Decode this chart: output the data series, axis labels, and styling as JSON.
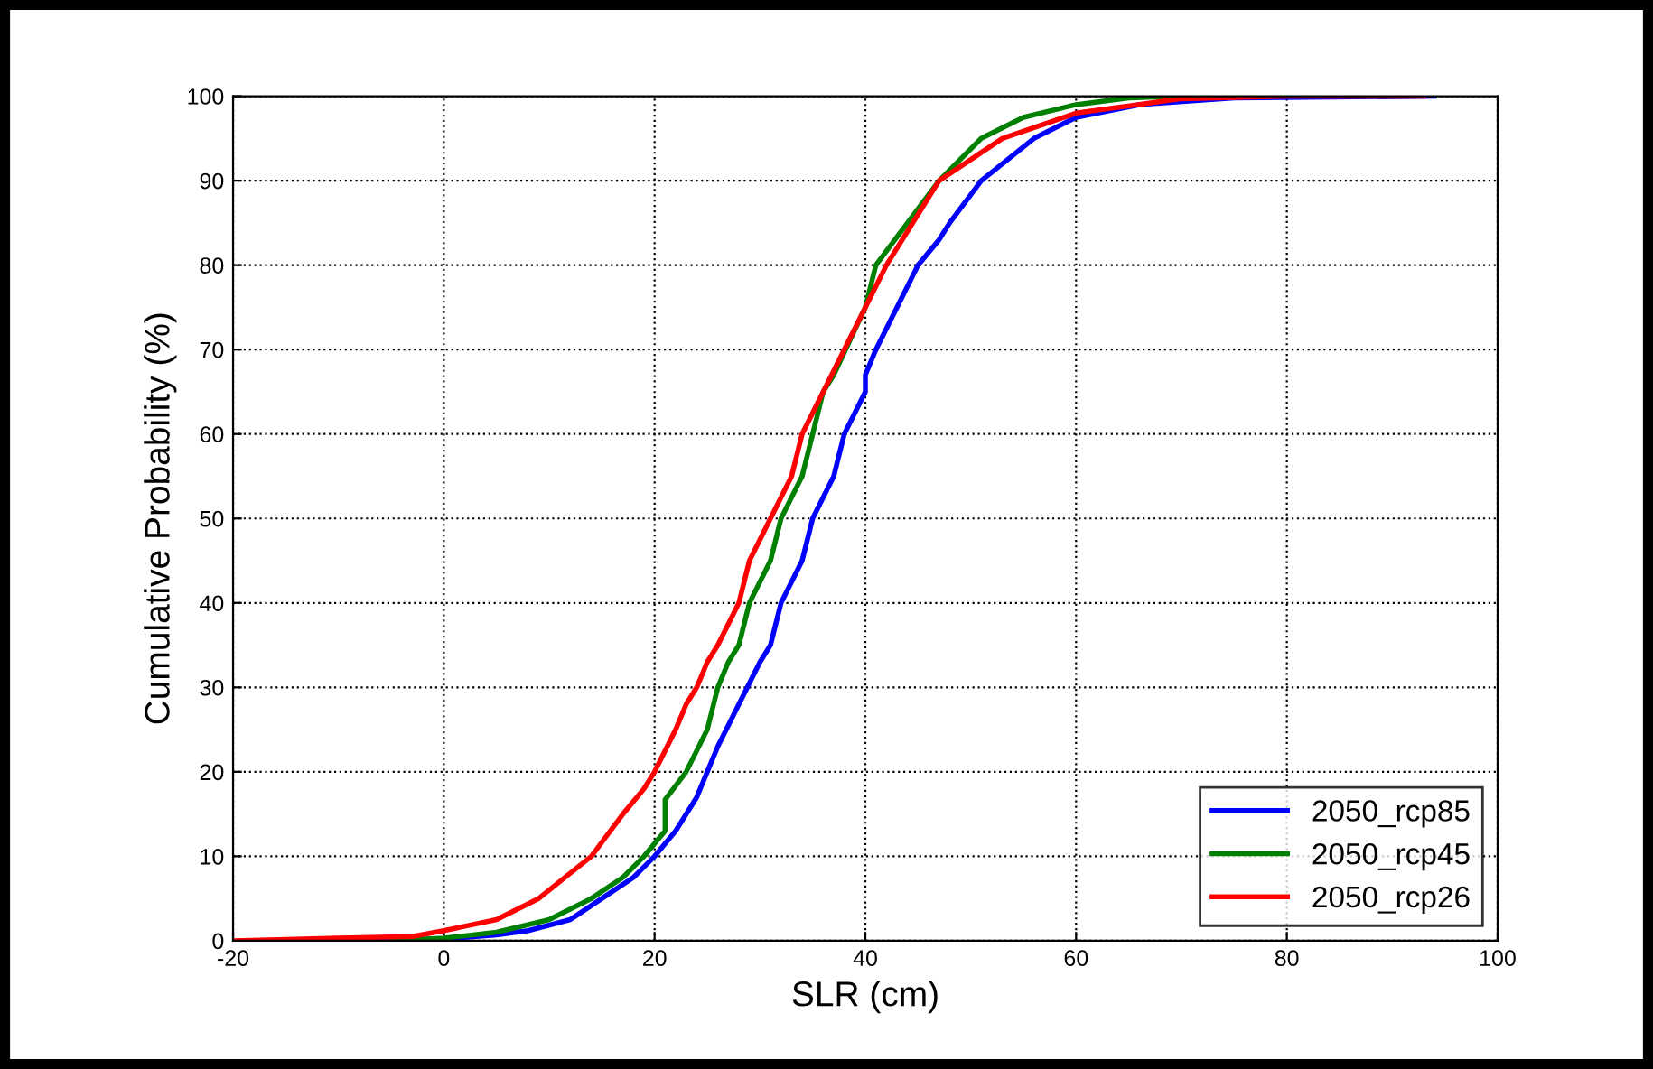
{
  "chart_data": {
    "type": "line",
    "xlabel": "SLR (cm)",
    "ylabel": "Cumulative Probability (%)",
    "xlim": [
      -20,
      100
    ],
    "ylim": [
      0,
      100
    ],
    "xticks": [
      -20,
      0,
      20,
      40,
      60,
      80,
      100
    ],
    "yticks": [
      0,
      10,
      20,
      30,
      40,
      50,
      60,
      70,
      80,
      90,
      100
    ],
    "grid": true,
    "legend": "bottom right",
    "line_style": "solid",
    "marker": "none",
    "series": [
      {
        "name": "2050_rcp85",
        "color": "#0000ff",
        "x": [
          -11,
          0,
          5,
          8,
          12,
          15,
          18,
          20,
          22,
          24,
          25,
          26,
          28,
          30,
          31,
          32,
          34,
          35,
          37,
          38,
          40,
          40,
          41,
          43,
          45,
          47,
          48,
          51,
          56,
          60,
          66,
          75,
          94
        ],
        "values": [
          0,
          0.2,
          0.7,
          1.2,
          2.5,
          5,
          7.5,
          10,
          13,
          17,
          20,
          23,
          28,
          33,
          35,
          40,
          45,
          50,
          55,
          60,
          65,
          67,
          70,
          75,
          80,
          83,
          85,
          90,
          95,
          97.5,
          99,
          99.8,
          100
        ]
      },
      {
        "name": "2050_rcp45",
        "color": "#008000",
        "x": [
          -5,
          0,
          5,
          10,
          14,
          17,
          19,
          21,
          21,
          21,
          23,
          25,
          26,
          27,
          28,
          29,
          31,
          32,
          34,
          35,
          36,
          37,
          40,
          41,
          44,
          47,
          51,
          55,
          60,
          65,
          70
        ],
        "values": [
          0,
          0.3,
          1,
          2.5,
          5,
          7.5,
          10,
          13,
          15,
          16.7,
          20,
          25,
          30,
          33,
          35,
          40,
          45,
          50,
          55,
          60,
          65,
          67,
          75,
          80,
          85,
          90,
          95,
          97.5,
          99,
          99.8,
          100
        ]
      },
      {
        "name": "2050_rcp26",
        "color": "#ff0000",
        "x": [
          -20,
          -10,
          -3,
          0,
          5,
          9,
          14,
          17,
          19,
          20,
          22,
          23,
          24,
          25,
          26,
          28,
          29,
          31,
          33,
          34,
          36,
          38,
          40,
          42,
          47,
          53,
          60,
          70,
          80,
          93
        ],
        "values": [
          0,
          0.3,
          0.5,
          1.2,
          2.5,
          5,
          10,
          15,
          18,
          20,
          25,
          28,
          30,
          33,
          35,
          40,
          45,
          50,
          55,
          60,
          65,
          70,
          75,
          80,
          90,
          95,
          98,
          99.7,
          100,
          100
        ]
      }
    ]
  }
}
